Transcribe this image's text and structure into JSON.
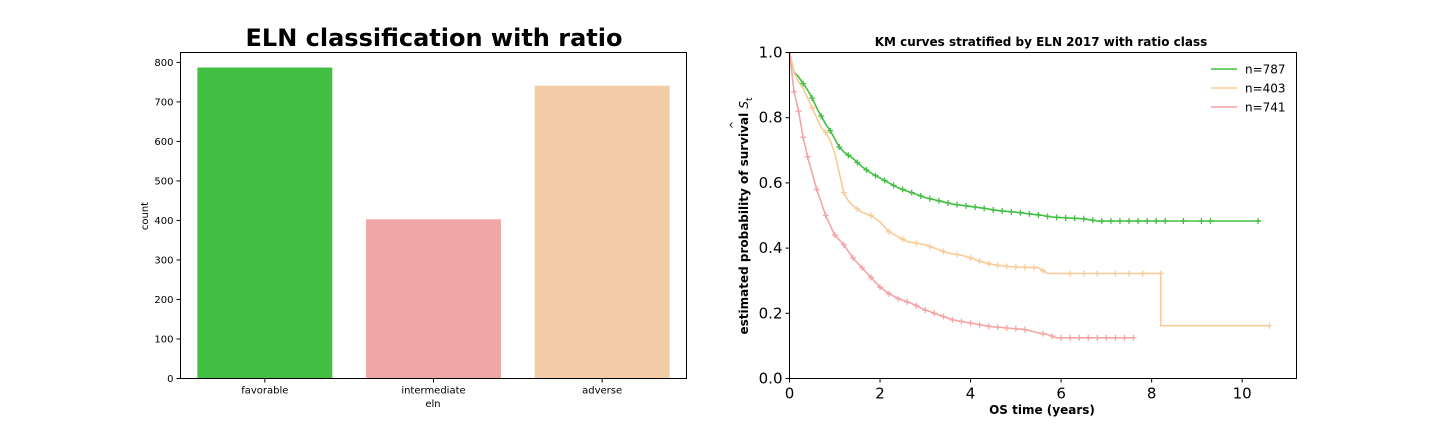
{
  "chart_data": [
    {
      "type": "bar",
      "title": "ELN classification with ratio",
      "xlabel": "eln",
      "ylabel": "count",
      "categories": [
        "favorable",
        "intermediate",
        "adverse"
      ],
      "values": [
        787,
        403,
        741
      ],
      "colors": [
        "#43bf43",
        "#f1a6a6",
        "#f1cca6"
      ],
      "ylim": [
        0,
        825
      ],
      "yticks": [
        0,
        100,
        200,
        300,
        400,
        500,
        600,
        700,
        800
      ],
      "grid": false
    },
    {
      "type": "line",
      "title": "KM curves stratified by ELN 2017 with ratio class",
      "xlabel": "OS time (years)",
      "ylabel": "estimated probability of survival Ŝt",
      "ylabel_main": "estimated probability of survival ",
      "ylabel_hat": "^",
      "ylabel_sym": "S",
      "ylabel_sub": "t",
      "xlim": [
        0,
        11.2
      ],
      "ylim": [
        0,
        1.0
      ],
      "xticks": [
        0,
        2,
        4,
        6,
        8,
        10
      ],
      "yticks": [
        0.0,
        0.2,
        0.4,
        0.6,
        0.8,
        1.0
      ],
      "xtick_labels": [
        "0",
        "2",
        "4",
        "6",
        "8",
        "10"
      ],
      "ytick_labels": [
        "0.0",
        "0.2",
        "0.4",
        "0.6",
        "0.8",
        "1.0"
      ],
      "legend_position": "top-right",
      "grid": false,
      "series": [
        {
          "name": "n=787",
          "color": "#43bf43",
          "points": [
            [
              0,
              1.0
            ],
            [
              0.1,
              0.94
            ],
            [
              0.2,
              0.925
            ],
            [
              0.3,
              0.905
            ],
            [
              0.4,
              0.885
            ],
            [
              0.5,
              0.86
            ],
            [
              0.6,
              0.83
            ],
            [
              0.7,
              0.805
            ],
            [
              0.8,
              0.78
            ],
            [
              0.9,
              0.76
            ],
            [
              1.0,
              0.735
            ],
            [
              1.1,
              0.71
            ],
            [
              1.2,
              0.695
            ],
            [
              1.4,
              0.675
            ],
            [
              1.6,
              0.65
            ],
            [
              1.8,
              0.63
            ],
            [
              2.0,
              0.615
            ],
            [
              2.2,
              0.6
            ],
            [
              2.4,
              0.585
            ],
            [
              2.6,
              0.575
            ],
            [
              2.8,
              0.565
            ],
            [
              3.0,
              0.555
            ],
            [
              3.3,
              0.545
            ],
            [
              3.6,
              0.535
            ],
            [
              4.0,
              0.528
            ],
            [
              4.3,
              0.522
            ],
            [
              4.6,
              0.515
            ],
            [
              5.0,
              0.51
            ],
            [
              5.3,
              0.505
            ],
            [
              5.6,
              0.5
            ],
            [
              5.8,
              0.495
            ],
            [
              6.5,
              0.49
            ],
            [
              6.8,
              0.483
            ],
            [
              10.4,
              0.483
            ]
          ],
          "censors": [
            0.3,
            0.5,
            0.7,
            0.9,
            1.1,
            1.3,
            1.5,
            1.7,
            1.9,
            2.1,
            2.3,
            2.5,
            2.7,
            2.9,
            3.1,
            3.3,
            3.5,
            3.7,
            3.9,
            4.1,
            4.3,
            4.5,
            4.7,
            4.9,
            5.1,
            5.3,
            5.5,
            5.7,
            5.9,
            6.1,
            6.3,
            6.5,
            6.7,
            6.9,
            7.1,
            7.3,
            7.5,
            7.7,
            7.9,
            8.1,
            8.3,
            8.7,
            9.1,
            9.3,
            10.35
          ]
        },
        {
          "name": "n=403",
          "color": "#f9cc97",
          "points": [
            [
              0,
              1.0
            ],
            [
              0.1,
              0.94
            ],
            [
              0.2,
              0.91
            ],
            [
              0.3,
              0.89
            ],
            [
              0.4,
              0.86
            ],
            [
              0.5,
              0.83
            ],
            [
              0.6,
              0.8
            ],
            [
              0.7,
              0.77
            ],
            [
              0.8,
              0.755
            ],
            [
              0.9,
              0.73
            ],
            [
              1.0,
              0.69
            ],
            [
              1.1,
              0.63
            ],
            [
              1.2,
              0.57
            ],
            [
              1.3,
              0.545
            ],
            [
              1.4,
              0.53
            ],
            [
              1.6,
              0.51
            ],
            [
              1.8,
              0.5
            ],
            [
              2.0,
              0.48
            ],
            [
              2.2,
              0.45
            ],
            [
              2.4,
              0.435
            ],
            [
              2.6,
              0.42
            ],
            [
              2.8,
              0.415
            ],
            [
              3.0,
              0.41
            ],
            [
              3.2,
              0.4
            ],
            [
              3.5,
              0.385
            ],
            [
              3.8,
              0.378
            ],
            [
              4.0,
              0.37
            ],
            [
              4.2,
              0.36
            ],
            [
              4.4,
              0.352
            ],
            [
              4.7,
              0.345
            ],
            [
              5.0,
              0.342
            ],
            [
              5.5,
              0.34
            ],
            [
              5.7,
              0.322
            ],
            [
              8.2,
              0.322
            ],
            [
              8.2,
              0.162
            ],
            [
              10.6,
              0.162
            ]
          ],
          "censors": [
            0.5,
            0.8,
            1.2,
            1.5,
            1.8,
            2.2,
            2.5,
            2.8,
            3.1,
            3.4,
            3.7,
            4.0,
            4.2,
            4.4,
            4.6,
            4.8,
            5.0,
            5.2,
            5.4,
            5.6,
            6.2,
            6.5,
            6.8,
            7.2,
            7.5,
            7.8,
            8.2,
            10.6
          ]
        },
        {
          "name": "n=741",
          "color": "#f4a5a5",
          "points": [
            [
              0,
              1.0
            ],
            [
              0.1,
              0.88
            ],
            [
              0.2,
              0.82
            ],
            [
              0.3,
              0.74
            ],
            [
              0.4,
              0.68
            ],
            [
              0.5,
              0.63
            ],
            [
              0.6,
              0.58
            ],
            [
              0.7,
              0.54
            ],
            [
              0.8,
              0.5
            ],
            [
              0.9,
              0.47
            ],
            [
              1.0,
              0.44
            ],
            [
              1.2,
              0.41
            ],
            [
              1.4,
              0.37
            ],
            [
              1.6,
              0.34
            ],
            [
              1.8,
              0.31
            ],
            [
              2.0,
              0.28
            ],
            [
              2.2,
              0.26
            ],
            [
              2.4,
              0.245
            ],
            [
              2.7,
              0.23
            ],
            [
              3.0,
              0.21
            ],
            [
              3.3,
              0.195
            ],
            [
              3.6,
              0.18
            ],
            [
              4.0,
              0.17
            ],
            [
              4.4,
              0.16
            ],
            [
              4.8,
              0.155
            ],
            [
              5.2,
              0.15
            ],
            [
              5.5,
              0.14
            ],
            [
              5.7,
              0.135
            ],
            [
              5.9,
              0.125
            ],
            [
              7.6,
              0.125
            ]
          ],
          "censors": [
            0.1,
            0.2,
            0.3,
            0.4,
            0.6,
            0.8,
            1.0,
            1.2,
            1.4,
            1.6,
            1.8,
            2.0,
            2.2,
            2.4,
            2.6,
            2.8,
            3.0,
            3.2,
            3.4,
            3.6,
            3.8,
            4.0,
            4.2,
            4.4,
            4.6,
            4.8,
            5.0,
            5.2,
            5.6,
            5.8,
            6.0,
            6.2,
            6.4,
            6.6,
            6.8,
            7.0,
            7.2,
            7.4,
            7.6
          ]
        }
      ]
    }
  ]
}
